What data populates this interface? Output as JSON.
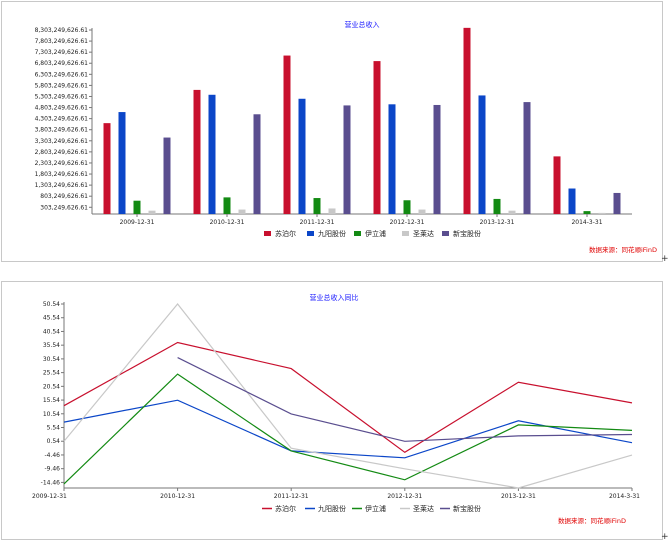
{
  "source_label": "数据来源：同花顺iFinD",
  "corner_mark": "+",
  "colors": {
    "苏泊尔": "#c8102e",
    "九阳股份": "#0b46c8",
    "伊立浦": "#138a13",
    "圣莱达": "#c8c8c8",
    "新宝股份": "#5a4e8f"
  },
  "chart_data": [
    {
      "type": "bar",
      "title": "营业总收入",
      "categories": [
        "2009-12-31",
        "2010-12-31",
        "2011-12-31",
        "2012-12-31",
        "2013-12-31",
        "2014-3-31"
      ],
      "yticks": [
        "303,249,626.61",
        "803,249,626.61",
        "1,303,249,626.61",
        "1,803,249,626.61",
        "2,303,249,626.61",
        "2,803,249,626.61",
        "3,303,249,626.61",
        "3,803,249,626.61",
        "4,303,249,626.61",
        "4,803,249,626.61",
        "5,303,249,626.61",
        "5,803,249,626.61",
        "6,303,249,626.61",
        "6,803,249,626.61",
        "7,303,249,626.61",
        "7,803,249,626.61",
        "8,303,249,626.61"
      ],
      "ylim": [
        0,
        8303249626.61
      ],
      "series": [
        {
          "name": "苏泊尔",
          "values": [
            4100000000,
            5600000000,
            7150000000,
            6900000000,
            8400000000,
            2600000000
          ]
        },
        {
          "name": "九阳股份",
          "values": [
            4600000000,
            5380000000,
            5200000000,
            4950000000,
            5350000000,
            1150000000
          ]
        },
        {
          "name": "伊立浦",
          "values": [
            600000000,
            750000000,
            720000000,
            620000000,
            680000000,
            130000000
          ]
        },
        {
          "name": "圣莱达",
          "values": [
            150000000,
            200000000,
            250000000,
            200000000,
            150000000,
            50000000
          ]
        },
        {
          "name": "新宝股份",
          "values": [
            3450000000,
            4500000000,
            4900000000,
            4920000000,
            5050000000,
            950000000
          ]
        }
      ],
      "legend_position": "bottom"
    },
    {
      "type": "line",
      "title": "营业总收入同比",
      "categories": [
        "2009-12-31",
        "2010-12-31",
        "2011-12-31",
        "2012-12-31",
        "2013-12-31",
        "2014-3-31"
      ],
      "yticks": [
        "-14.46",
        "-9.46",
        "-4.46",
        "0.54",
        "5.54",
        "10.54",
        "15.54",
        "20.54",
        "25.54",
        "30.54",
        "35.54",
        "40.54",
        "45.54",
        "50.54"
      ],
      "ylim": [
        -16.5,
        50.54
      ],
      "series": [
        {
          "name": "苏泊尔",
          "values": [
            13.5,
            36.5,
            27.0,
            -3.5,
            22.0,
            14.5
          ]
        },
        {
          "name": "九阳股份",
          "values": [
            7.5,
            15.5,
            -3.0,
            -5.5,
            8.0,
            0.0
          ]
        },
        {
          "name": "伊立浦",
          "values": [
            -15.0,
            25.0,
            -3.0,
            -13.5,
            6.5,
            4.5
          ]
        },
        {
          "name": "圣莱达",
          "values": [
            0.54,
            50.54,
            -2.0,
            -9.5,
            -16.5,
            -4.5
          ]
        },
        {
          "name": "新宝股份",
          "values": [
            null,
            31.0,
            10.5,
            0.5,
            2.5,
            3.0
          ]
        }
      ],
      "legend_position": "bottom"
    }
  ]
}
